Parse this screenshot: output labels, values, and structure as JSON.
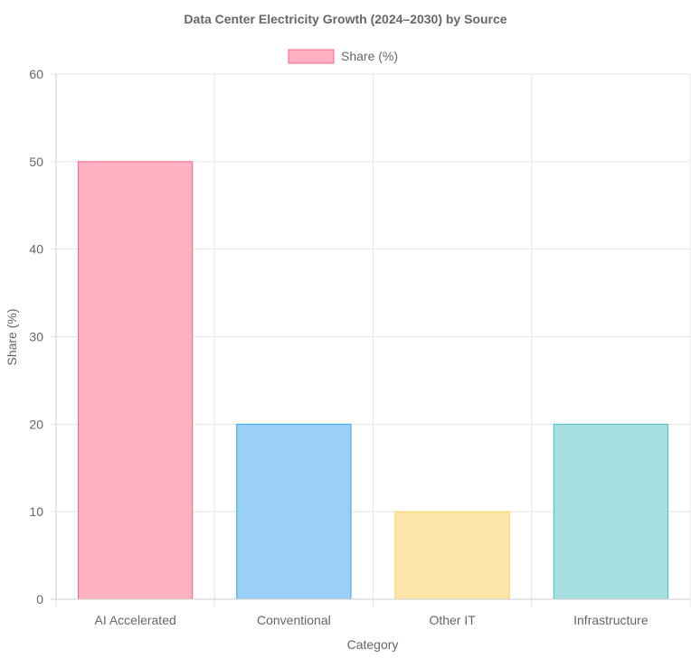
{
  "chart_data": {
    "type": "bar",
    "title": "Data Center Electricity Growth (2024–2030) by Source",
    "xlabel": "Category",
    "ylabel": "Share (%)",
    "ylim": [
      0,
      60
    ],
    "ytick_step": 10,
    "grid": true,
    "legend_position": "top-center",
    "categories": [
      "AI Accelerated",
      "Conventional",
      "Other IT",
      "Infrastructure"
    ],
    "series": [
      {
        "name": "Share (%)",
        "values": [
          50,
          20,
          10,
          20
        ],
        "fill_colors": [
          "#ffb1c1",
          "#9ad0f5",
          "#ffe6aa",
          "#a5dfdf"
        ],
        "border_colors": [
          "#ff6384",
          "#36a2eb",
          "#ffcd56",
          "#4bc0c0"
        ]
      }
    ]
  }
}
